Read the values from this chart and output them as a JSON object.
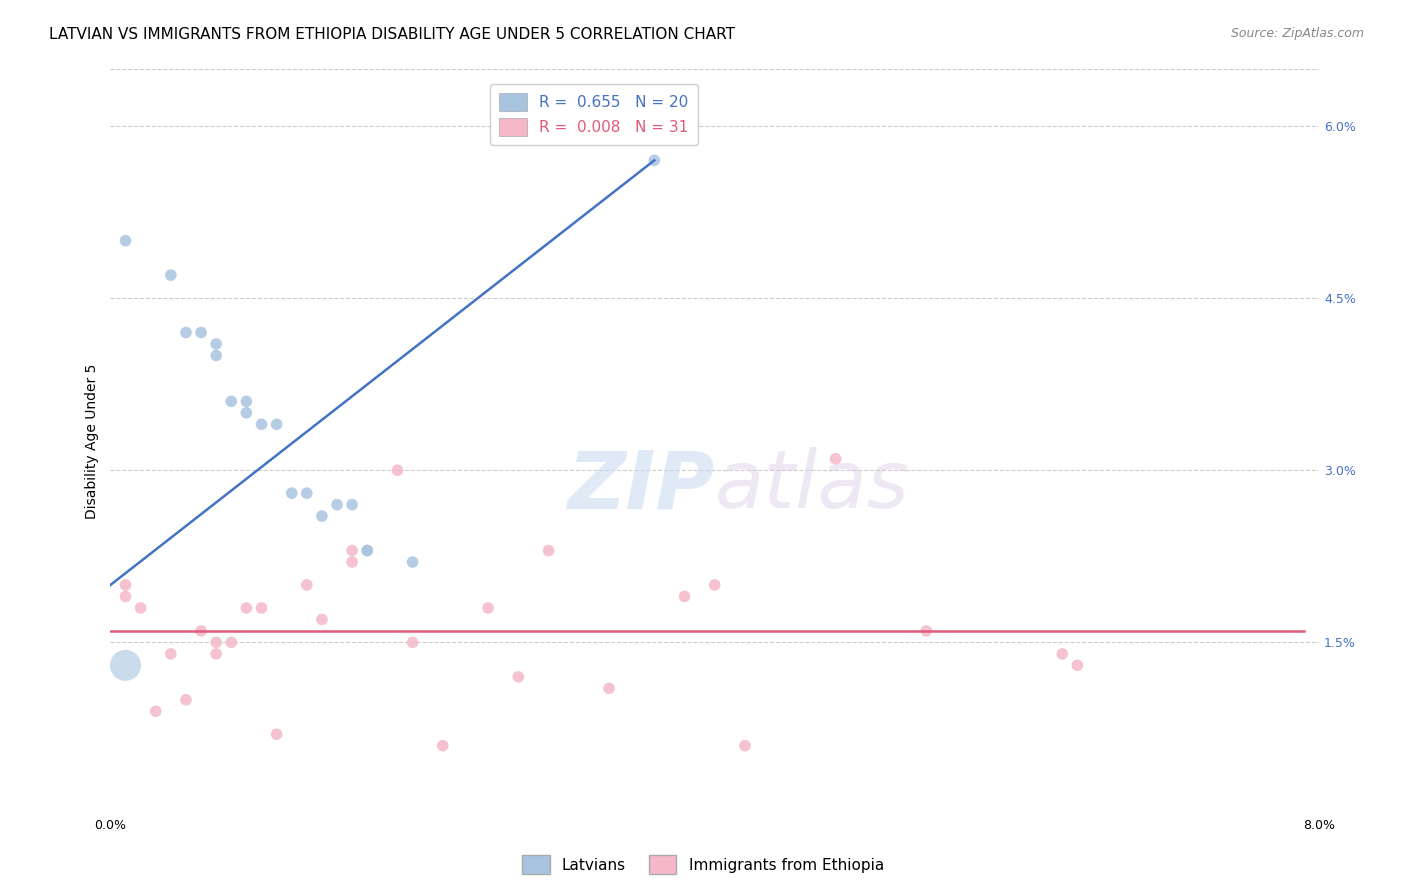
{
  "title": "LATVIAN VS IMMIGRANTS FROM ETHIOPIA DISABILITY AGE UNDER 5 CORRELATION CHART",
  "source": "Source: ZipAtlas.com",
  "xlabel": "",
  "ylabel": "Disability Age Under 5",
  "xlim": [
    0.0,
    0.08
  ],
  "ylim": [
    0.0,
    0.065
  ],
  "xticks": [
    0.0,
    0.02,
    0.04,
    0.06,
    0.08
  ],
  "xtick_labels": [
    "0.0%",
    "",
    "",
    "",
    "8.0%"
  ],
  "yticks": [
    0.015,
    0.03,
    0.045,
    0.06
  ],
  "ytick_labels": [
    "1.5%",
    "3.0%",
    "4.5%",
    "6.0%"
  ],
  "grid_yticks": [
    0.015,
    0.03,
    0.045,
    0.06
  ],
  "latvian_color": "#a8c4e0",
  "ethiopia_color": "#f4b8c8",
  "latvian_line_color": "#4472c4",
  "ethiopia_line_color": "#e05a7a",
  "R_latvian": 0.655,
  "N_latvian": 20,
  "R_ethiopia": 0.008,
  "N_ethiopia": 31,
  "watermark_zip": "ZIP",
  "watermark_atlas": "atlas",
  "background_color": "#ffffff",
  "title_fontsize": 11,
  "axis_label_fontsize": 10,
  "tick_fontsize": 9,
  "legend_fontsize": 11,
  "source_fontsize": 9,
  "scatter_size": 70,
  "large_scatter_size": 500,
  "latvian_points": [
    [
      0.001,
      0.05
    ],
    [
      0.004,
      0.047
    ],
    [
      0.005,
      0.042
    ],
    [
      0.006,
      0.042
    ],
    [
      0.007,
      0.04
    ],
    [
      0.007,
      0.041
    ],
    [
      0.008,
      0.036
    ],
    [
      0.009,
      0.036
    ],
    [
      0.009,
      0.035
    ],
    [
      0.01,
      0.034
    ],
    [
      0.011,
      0.034
    ],
    [
      0.012,
      0.028
    ],
    [
      0.013,
      0.028
    ],
    [
      0.014,
      0.026
    ],
    [
      0.015,
      0.027
    ],
    [
      0.016,
      0.027
    ],
    [
      0.017,
      0.023
    ],
    [
      0.017,
      0.023
    ],
    [
      0.02,
      0.022
    ],
    [
      0.036,
      0.057
    ]
  ],
  "ethiopia_points": [
    [
      0.001,
      0.019
    ],
    [
      0.001,
      0.02
    ],
    [
      0.002,
      0.018
    ],
    [
      0.003,
      0.009
    ],
    [
      0.004,
      0.014
    ],
    [
      0.005,
      0.01
    ],
    [
      0.006,
      0.016
    ],
    [
      0.007,
      0.015
    ],
    [
      0.007,
      0.014
    ],
    [
      0.008,
      0.015
    ],
    [
      0.009,
      0.018
    ],
    [
      0.01,
      0.018
    ],
    [
      0.011,
      0.007
    ],
    [
      0.013,
      0.02
    ],
    [
      0.014,
      0.017
    ],
    [
      0.016,
      0.023
    ],
    [
      0.016,
      0.022
    ],
    [
      0.019,
      0.03
    ],
    [
      0.02,
      0.015
    ],
    [
      0.022,
      0.006
    ],
    [
      0.025,
      0.018
    ],
    [
      0.027,
      0.012
    ],
    [
      0.029,
      0.023
    ],
    [
      0.033,
      0.011
    ],
    [
      0.038,
      0.019
    ],
    [
      0.04,
      0.02
    ],
    [
      0.042,
      0.006
    ],
    [
      0.048,
      0.031
    ],
    [
      0.054,
      0.016
    ],
    [
      0.063,
      0.014
    ],
    [
      0.064,
      0.013
    ]
  ],
  "latvian_large_point": [
    0.001,
    0.013
  ],
  "lat_line_x": [
    0.0,
    0.036
  ],
  "lat_line_y": [
    0.02,
    0.057
  ],
  "eth_line_x": [
    0.0,
    0.079
  ],
  "eth_line_y": [
    0.016,
    0.016
  ]
}
